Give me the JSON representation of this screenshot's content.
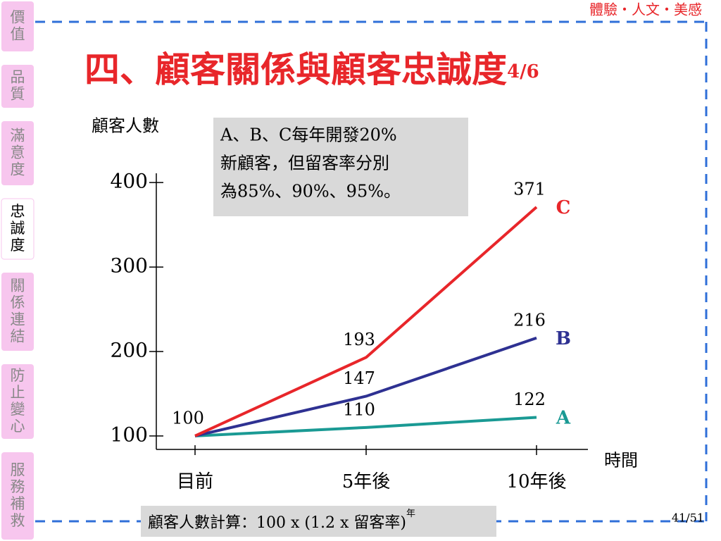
{
  "slide": {
    "tagline": "體驗・人文・美感",
    "title": "四、顧客關係與顧客忠誠度",
    "title_suffix": "4/6",
    "page": "41/51",
    "nav": {
      "items": [
        "價值",
        "品質",
        "滿意度",
        "忠誠度",
        "關係連結",
        "防止變心",
        "服務補救"
      ],
      "active": 3
    },
    "note": [
      "A、B、C每年開發20%",
      "新顧客，但留客率分別",
      "為85%、90%、95%。"
    ],
    "formula": "顧客人數計算：100 x (1.2 x 留客率)",
    "formula_sup": "年"
  },
  "chart_data": {
    "type": "line",
    "y_label": "顧客人數",
    "x_label": "時間",
    "categories": [
      "目前",
      "5年後",
      "10年後"
    ],
    "series": [
      {
        "name": "A",
        "color": "#1a9a94",
        "values": [
          100,
          110,
          122
        ]
      },
      {
        "name": "B",
        "color": "#2e3192",
        "values": [
          100,
          147,
          216
        ]
      },
      {
        "name": "C",
        "color": "#e8262a",
        "values": [
          100,
          193,
          371
        ]
      }
    ],
    "ylim": [
      84,
      411
    ],
    "yticks": [
      100,
      200,
      300,
      400
    ]
  }
}
